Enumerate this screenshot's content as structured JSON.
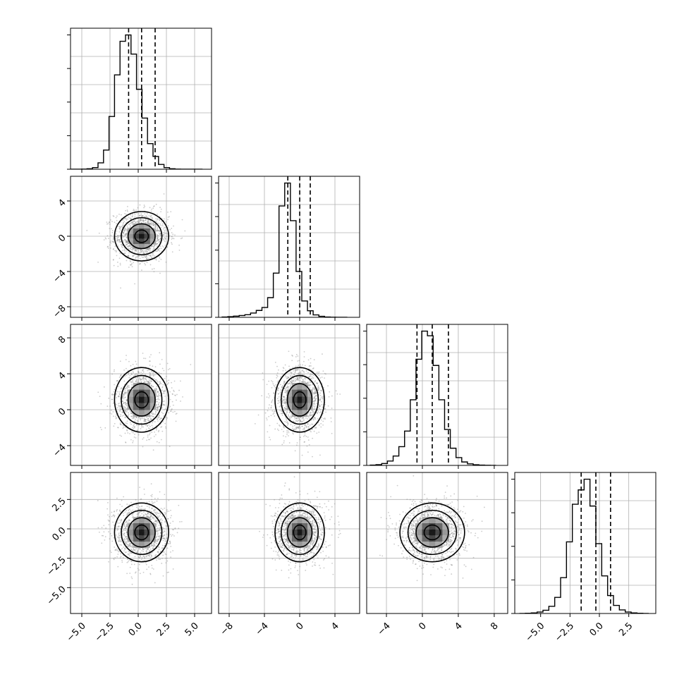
{
  "chart_data": {
    "type": "corner",
    "grid": true,
    "colors": {
      "line": "#000000",
      "grid": "#b0b0b0",
      "scatter": "#8c8c8c",
      "background": "#ffffff"
    },
    "parameters": [
      {
        "range": [
          -6.0,
          6.5
        ],
        "ticks": [
          -5.0,
          -2.5,
          0.0,
          2.5,
          5.0
        ],
        "tick_labels": [
          "−5.0",
          "−2.5",
          "0.0",
          "2.5",
          "5.0"
        ],
        "mean": 0.3,
        "sigma": 1.2,
        "quantiles": [
          -0.85,
          0.3,
          1.5
        ],
        "hist_bins": [
          -6.0,
          5.7,
          24
        ],
        "hist_counts": [
          0,
          0,
          1,
          3,
          10,
          40,
          120,
          330,
          590,
          800,
          840,
          720,
          500,
          320,
          160,
          80,
          30,
          10,
          3,
          1,
          0,
          0,
          0,
          0
        ]
      },
      {
        "range": [
          -9.2,
          6.8
        ],
        "ticks": [
          -8,
          -4,
          0,
          4
        ],
        "tick_labels": [
          "−8",
          "−4",
          "0",
          "4"
        ],
        "mean": 0.0,
        "sigma": 1.4,
        "quantiles": [
          -1.35,
          0.0,
          1.2
        ],
        "hist_bins": [
          -8.8,
          5.4,
          22
        ],
        "hist_counts": [
          2,
          4,
          7,
          11,
          16,
          26,
          42,
          60,
          120,
          270,
          680,
          820,
          590,
          280,
          100,
          40,
          15,
          6,
          2,
          1,
          0,
          0
        ]
      },
      {
        "range": [
          -6.2,
          9.5
        ],
        "ticks": [
          -4,
          0,
          4,
          8
        ],
        "tick_labels": [
          "−4",
          "0",
          "4",
          "8"
        ],
        "mean": 1.1,
        "sigma": 1.8,
        "quantiles": [
          -0.6,
          1.1,
          2.9
        ],
        "hist_bins": [
          -5.8,
          8.2,
          22
        ],
        "hist_counts": [
          2,
          5,
          12,
          28,
          60,
          120,
          220,
          420,
          680,
          860,
          830,
          640,
          420,
          230,
          110,
          50,
          22,
          10,
          4,
          2,
          1,
          0
        ]
      },
      {
        "range": [
          -7.2,
          4.8
        ],
        "ticks": [
          -5.0,
          -2.5,
          0.0,
          2.5
        ],
        "tick_labels": [
          "−5.0",
          "−2.5",
          "0.0",
          "2.5"
        ],
        "mean": -0.3,
        "sigma": 1.25,
        "quantiles": [
          -1.55,
          -0.3,
          0.95
        ],
        "hist_bins": [
          -6.8,
          4.2,
          22
        ],
        "hist_counts": [
          0,
          1,
          3,
          8,
          18,
          40,
          90,
          200,
          400,
          610,
          690,
          750,
          600,
          390,
          210,
          100,
          45,
          20,
          8,
          3,
          1,
          0
        ]
      }
    ],
    "contour_levels_sigma": [
      0.5,
      1.0,
      1.5,
      2.0
    ]
  }
}
